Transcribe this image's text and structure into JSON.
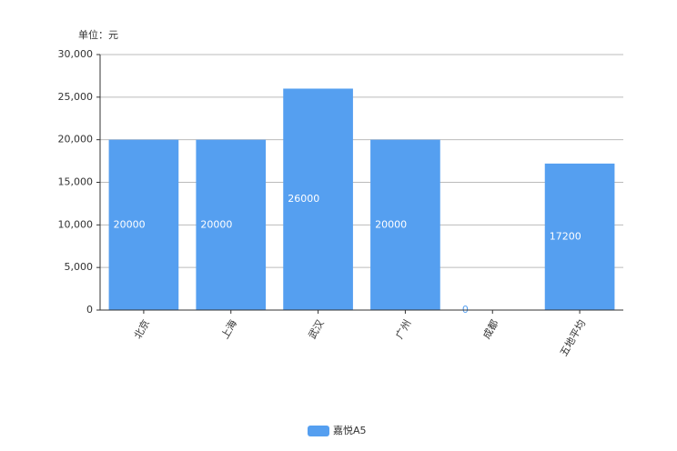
{
  "chart_data": {
    "type": "bar",
    "unit_label": "单位：元",
    "categories": [
      "北京",
      "上海",
      "武汉",
      "广州",
      "成都",
      "五地平均"
    ],
    "series": [
      {
        "name": "嘉悦A5",
        "color": "#559ff0",
        "values": [
          20000,
          20000,
          26000,
          20000,
          0,
          17200
        ]
      }
    ],
    "ylim": [
      0,
      30000
    ],
    "yticks": [
      0,
      {
        "value": 5000,
        "label": "5,000"
      },
      {
        "value": 10000,
        "label": "10,000"
      },
      {
        "value": 15000,
        "label": "15,000"
      },
      {
        "value": 20000,
        "label": "20,000"
      },
      {
        "value": 25000,
        "label": "25,000"
      },
      {
        "value": 30000,
        "label": "30,000"
      }
    ],
    "grid": true,
    "legend": "bottom"
  }
}
